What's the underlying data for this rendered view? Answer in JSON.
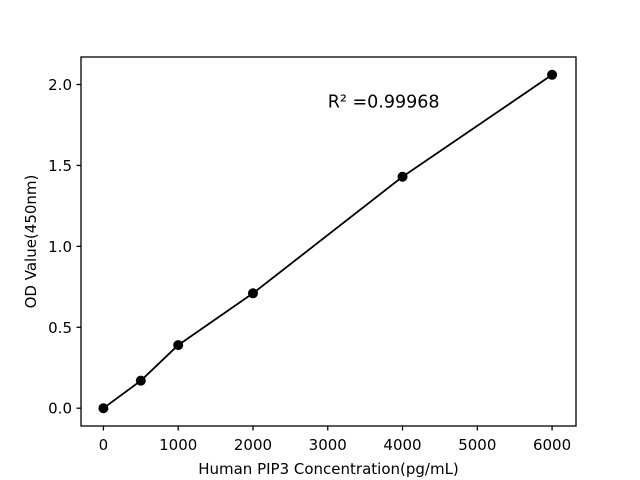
{
  "figure": {
    "background": "#ffffff",
    "foreground": "#000000"
  },
  "chart_data": {
    "type": "scatter",
    "title": "",
    "xlabel": "Human PIP3 Concentration(pg/mL)",
    "ylabel": "OD Value(450nm)",
    "annotation": {
      "text": "R² =0.99968",
      "x": 3000,
      "y": 1.89
    },
    "x": [
      0,
      500,
      1000,
      2000,
      4000,
      6000
    ],
    "y": [
      0.0,
      0.17,
      0.39,
      0.71,
      1.43,
      2.06
    ],
    "xlim": [
      -300,
      6320
    ],
    "ylim": [
      -0.11,
      2.17
    ],
    "xticks": [
      0,
      1000,
      2000,
      3000,
      4000,
      5000,
      6000
    ],
    "xtick_labels": [
      "0",
      "1000",
      "2000",
      "3000",
      "4000",
      "5000",
      "6000"
    ],
    "yticks": [
      0.0,
      0.5,
      1.0,
      1.5,
      2.0
    ],
    "ytick_labels": [
      "0.0",
      "0.5",
      "1.0",
      "1.5",
      "2.0"
    ],
    "grid": false,
    "legend": "none",
    "line_color": "#000000",
    "marker_color": "#000000",
    "frame_color": "#000000"
  }
}
